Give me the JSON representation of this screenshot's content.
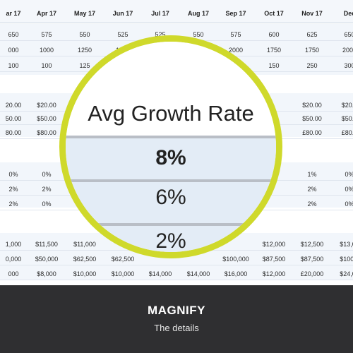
{
  "sheet": {
    "headers": [
      "ar 17",
      "Apr 17",
      "May 17",
      "Jun 17",
      "Jul 17",
      "Aug 17",
      "Sep 17",
      "Oct 17",
      "Nov 17",
      "Dec"
    ],
    "rows": [
      [
        "650",
        "575",
        "550",
        "525",
        "525",
        "550",
        "575",
        "600",
        "625",
        "650"
      ],
      [
        "000",
        "1000",
        "1250",
        "1250",
        "",
        "",
        "2000",
        "1750",
        "1750",
        "2000"
      ],
      [
        "100",
        "100",
        "125",
        "",
        "",
        "",
        "",
        "150",
        "250",
        "300"
      ],
      [
        "20.00",
        "$20.00",
        "",
        "",
        "",
        "",
        "",
        "",
        "$20.00",
        "$20.0"
      ],
      [
        "50.00",
        "$50.00",
        "",
        "",
        "",
        "",
        "",
        "",
        "$50.00",
        "$50.0"
      ],
      [
        "80.00",
        "$80.00",
        "",
        "",
        "",
        "",
        "",
        "",
        "£80.00",
        "£80.0"
      ],
      [
        "0%",
        "0%",
        "",
        "",
        "",
        "",
        "",
        "",
        "1%",
        "0%"
      ],
      [
        "2%",
        "2%",
        "",
        "",
        "",
        "",
        "",
        "",
        "2%",
        "0%"
      ],
      [
        "2%",
        "0%",
        "",
        "",
        "",
        "",
        "",
        "",
        "2%",
        "0%"
      ],
      [
        "1,000",
        "$11,500",
        "$11,000",
        "",
        "",
        "",
        "",
        "$12,000",
        "$12,500",
        "$13,00"
      ],
      [
        "0,000",
        "$50,000",
        "$62,500",
        "$62,500",
        "",
        "",
        "$100,000",
        "$87,500",
        "$87,500",
        "$100,0"
      ],
      [
        "000",
        "$8,000",
        "$10,000",
        "$10,000",
        "$14,000",
        "$14,000",
        "$16,000",
        "$12,000",
        "£20,000",
        "$24,00"
      ]
    ]
  },
  "lens": {
    "header": "Avg Growth Rate",
    "values": [
      "8%",
      "6%",
      "2%"
    ],
    "ring_color": "#cfd92b",
    "row_color": "#e3ecf6"
  },
  "footer": {
    "title": "MAGNIFY",
    "subtitle": "The details"
  }
}
